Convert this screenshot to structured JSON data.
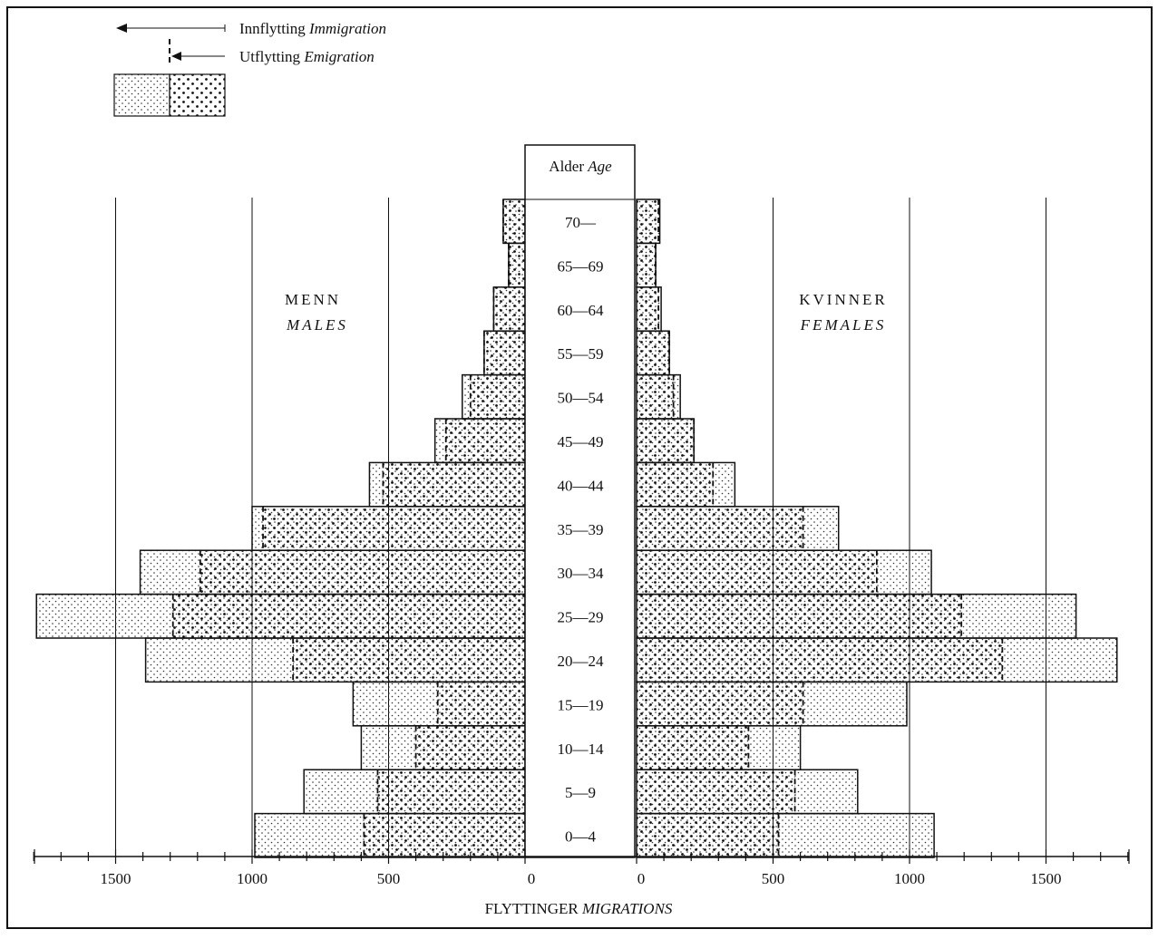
{
  "chart_data": {
    "type": "bar",
    "orientation": "horizontal",
    "layout": "population-pyramid",
    "age_header": {
      "no": "Alder",
      "en": "Age"
    },
    "left_group": {
      "no": "MENN",
      "en": "MALES"
    },
    "right_group": {
      "no": "KVINNER",
      "en": "FEMALES"
    },
    "x_title": {
      "no": "FLYTTINGER",
      "en": "MIGRATIONS"
    },
    "legend": {
      "immigration": {
        "no": "Innflytting",
        "en": "Immigration"
      },
      "emigration": {
        "no": "Utflytting",
        "en": "Emigration"
      }
    },
    "x_ticks": [
      "0",
      "500",
      "1000",
      "1500"
    ],
    "xlim": [
      0,
      1800
    ],
    "grid": true,
    "categories": [
      "70—",
      "65—69",
      "60—64",
      "55—59",
      "50—54",
      "45—49",
      "40—44",
      "35—39",
      "30—34",
      "25—29",
      "20—24",
      "15—19",
      "10—14",
      "5—9",
      "0—4"
    ],
    "series": [
      {
        "name": "Innflytting Immigration",
        "group": "males",
        "values": [
          75,
          55,
          105,
          140,
          230,
          330,
          570,
          1000,
          1410,
          1790,
          1390,
          630,
          600,
          810,
          990
        ]
      },
      {
        "name": "Utflytting Emigration",
        "group": "males",
        "values": [
          80,
          60,
          115,
          150,
          200,
          290,
          520,
          960,
          1190,
          1290,
          850,
          320,
          400,
          540,
          590
        ]
      },
      {
        "name": "Innflytting Immigration",
        "group": "females",
        "values": [
          85,
          70,
          90,
          115,
          160,
          210,
          360,
          740,
          1080,
          1610,
          1760,
          990,
          600,
          810,
          1090
        ]
      },
      {
        "name": "Utflytting Emigration",
        "group": "females",
        "values": [
          80,
          70,
          80,
          120,
          135,
          210,
          280,
          610,
          880,
          1190,
          1340,
          610,
          410,
          580,
          520
        ]
      }
    ]
  }
}
